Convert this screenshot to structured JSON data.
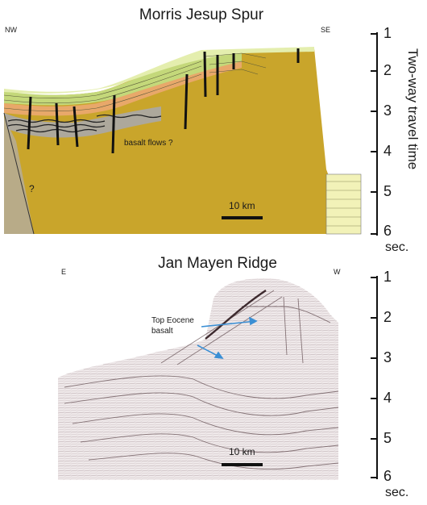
{
  "top_panel": {
    "title": "Morris Jesup Spur",
    "left_label": "NW",
    "right_label": "SE",
    "annotation_basalt": "basalt flows ?",
    "annotation_q": "?",
    "scale_label": "10 km"
  },
  "bottom_panel": {
    "title": "Jan Mayen Ridge",
    "left_label": "E",
    "right_label": "W",
    "annotation": [
      "Top Eocene",
      "basalt"
    ],
    "scale_label": "10 km"
  },
  "axis": {
    "title": "Two-way travel time",
    "unit": "sec.",
    "ticks": [
      "1",
      "2",
      "3",
      "4",
      "5",
      "6"
    ]
  },
  "colors": {
    "basement": "#c9a52b",
    "seq_green": "#c4d87a",
    "seq_lightgreen": "#e4eeae",
    "seq_orange": "#e8a86a",
    "seq_gray": "#a8a8b0",
    "wedge": "#b8ab88",
    "arrow": "#3b8fd4"
  }
}
